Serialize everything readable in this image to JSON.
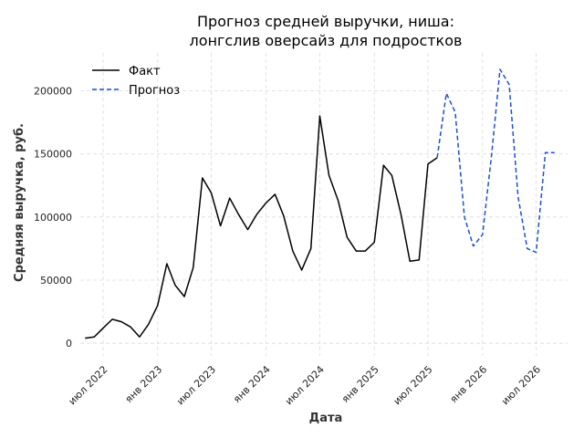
{
  "chart_data": {
    "type": "line",
    "title_lines": [
      "Прогноз средней выручки, ниша:",
      "лонгслив оверсайз для подростков"
    ],
    "xlabel": "Дата",
    "ylabel": "Средняя выручка, руб.",
    "ylim": [
      -10000,
      230000
    ],
    "yticks": [
      0,
      50000,
      100000,
      150000,
      200000
    ],
    "ytick_labels": [
      "0",
      "50000",
      "100000",
      "150000",
      "200000"
    ],
    "xlim": [
      "2022-04-15",
      "2026-10-15"
    ],
    "xticks": [
      "2022-07-01",
      "2023-01-01",
      "2023-07-01",
      "2024-01-01",
      "2024-07-01",
      "2025-01-01",
      "2025-07-01",
      "2026-01-01",
      "2026-07-01"
    ],
    "xtick_labels": [
      "июл 2022",
      "янв 2023",
      "июл 2023",
      "янв 2024",
      "июл 2024",
      "янв 2025",
      "июл 2025",
      "янв 2026",
      "июл 2026"
    ],
    "grid": true,
    "legend_position": "top-left",
    "series": [
      {
        "name": "Факт",
        "color": "#000000",
        "style": "solid",
        "x": [
          "2022-05-01",
          "2022-06-01",
          "2022-07-01",
          "2022-08-01",
          "2022-09-01",
          "2022-10-01",
          "2022-11-01",
          "2022-12-01",
          "2023-01-01",
          "2023-02-01",
          "2023-03-01",
          "2023-04-01",
          "2023-05-01",
          "2023-06-01",
          "2023-07-01",
          "2023-08-01",
          "2023-09-01",
          "2023-10-01",
          "2023-11-01",
          "2023-12-01",
          "2024-01-01",
          "2024-02-01",
          "2024-03-01",
          "2024-04-01",
          "2024-05-01",
          "2024-06-01",
          "2024-07-01",
          "2024-08-01",
          "2024-09-01",
          "2024-10-01",
          "2024-11-01",
          "2024-12-01",
          "2025-01-01",
          "2025-02-01",
          "2025-03-01",
          "2025-04-01",
          "2025-05-01",
          "2025-06-01",
          "2025-07-01",
          "2025-08-01"
        ],
        "values": [
          4000,
          5000,
          12000,
          19000,
          17000,
          13000,
          5000,
          15000,
          30000,
          63000,
          46000,
          37000,
          60000,
          131000,
          119000,
          93000,
          115000,
          102000,
          90000,
          102000,
          111000,
          118000,
          101000,
          73000,
          58000,
          75000,
          180000,
          133000,
          113000,
          84000,
          73000,
          73000,
          80000,
          141000,
          133000,
          102000,
          65000,
          66000,
          142000,
          147000
        ]
      },
      {
        "name": "Прогноз",
        "color": "#1f4fd1",
        "style": "dashed",
        "x": [
          "2025-08-01",
          "2025-09-01",
          "2025-10-01",
          "2025-11-01",
          "2025-12-01",
          "2026-01-01",
          "2026-02-01",
          "2026-03-01",
          "2026-04-01",
          "2026-05-01",
          "2026-06-01",
          "2026-07-01",
          "2026-08-01",
          "2026-09-01"
        ],
        "values": [
          147000,
          198000,
          183000,
          100000,
          77000,
          86000,
          150000,
          217000,
          205000,
          116000,
          75000,
          72000,
          151000,
          151000
        ]
      }
    ]
  }
}
